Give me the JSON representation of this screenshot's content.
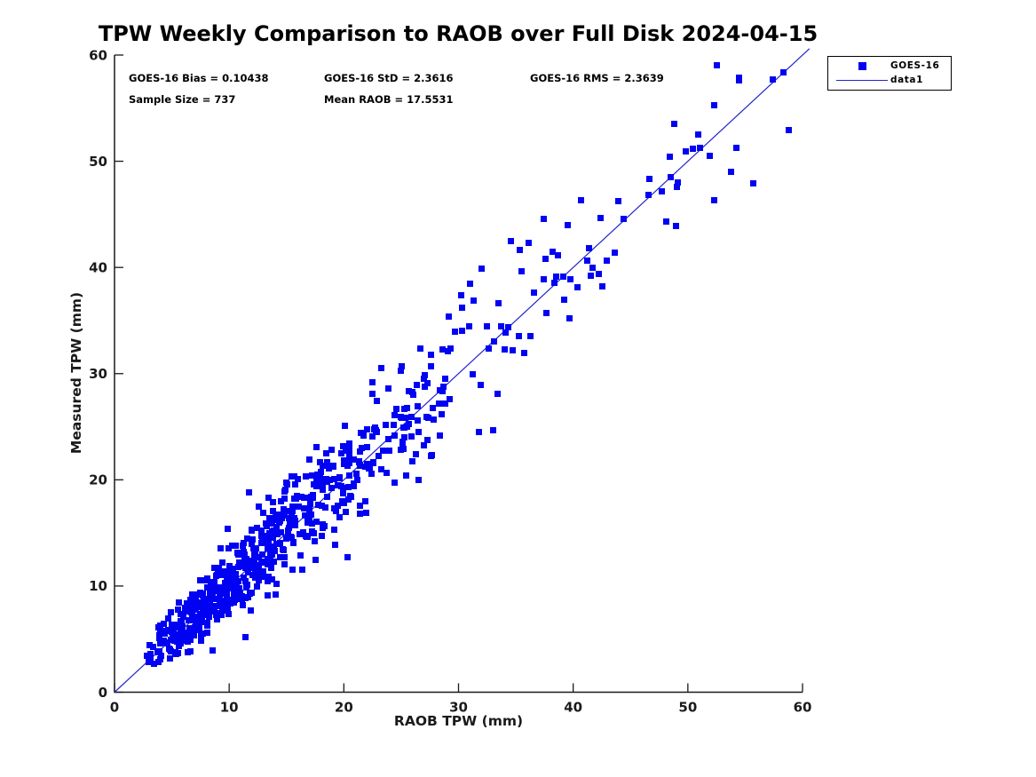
{
  "page": {
    "background": "#ffffff"
  },
  "chart_data": {
    "type": "scatter",
    "title": "TPW Weekly Comparison to RAOB over Full Disk 2024-04-15",
    "xlabel": "RAOB TPW (mm)",
    "ylabel": "Measured TPW (mm)",
    "xlim": [
      0,
      60
    ],
    "ylim": [
      0,
      60
    ],
    "x_ticks": [
      0,
      10,
      20,
      30,
      40,
      50,
      60
    ],
    "y_ticks": [
      0,
      10,
      20,
      30,
      40,
      50,
      60
    ],
    "grid": false,
    "colors": {
      "marker": "#0202f2",
      "line": "#2222cc",
      "axis": "#1a1a1a",
      "text": "#000000"
    },
    "annotations": [
      {
        "id": "bias",
        "text": "GOES-16 Bias = 0.10438"
      },
      {
        "id": "std",
        "text": "GOES-16 StD = 2.3616"
      },
      {
        "id": "rms",
        "text": "GOES-16 RMS = 2.3639"
      },
      {
        "id": "sample",
        "text": "Sample Size = 737"
      },
      {
        "id": "mean_raob",
        "text": "Mean RAOB = 17.5531"
      }
    ],
    "stats": {
      "bias": 0.10438,
      "std": 2.3616,
      "rms": 2.3639,
      "sample_size": 737,
      "mean_raob": 17.5531
    },
    "legend": {
      "position": "top-right-outside",
      "entries": [
        {
          "label": "GOES-16",
          "glyph": "square",
          "color": "#0202f2"
        },
        {
          "label": "data1",
          "glyph": "line",
          "color": "#2222cc"
        }
      ]
    },
    "series": [
      {
        "name": "GOES-16",
        "kind": "scatter",
        "marker": "square",
        "marker_size_px": 7,
        "color": "#0202f2",
        "n_points": 737,
        "notable_points": [
          [
            32.0,
            39.9
          ],
          [
            40.7,
            46.3
          ],
          [
            39.5,
            44.0
          ],
          [
            31.8,
            24.5
          ],
          [
            33.0,
            24.7
          ],
          [
            26.5,
            20.0
          ],
          [
            20.3,
            12.7
          ],
          [
            11.4,
            5.2
          ],
          [
            58.8,
            52.9
          ],
          [
            57.4,
            57.7
          ],
          [
            58.3,
            58.4
          ],
          [
            52.3,
            55.3
          ],
          [
            54.2,
            51.3
          ],
          [
            53.8,
            49.0
          ],
          [
            55.7,
            47.9
          ],
          [
            48.8,
            53.5
          ],
          [
            49.8,
            50.9
          ],
          [
            11.7,
            18.8
          ],
          [
            12.6,
            17.5
          ],
          [
            9.9,
            15.4
          ],
          [
            22.5,
            29.2
          ],
          [
            23.3,
            30.5
          ]
        ],
        "synthesis": {
          "seed": 42,
          "x_lognormal_mu": 2.6,
          "x_lognormal_sigma": 0.68,
          "x_min": 2.6,
          "x_max": 59.0,
          "bias": 0.10438,
          "resid_sigma_base": 0.6,
          "resid_sigma_slope": 0.1,
          "resid_sigma_cap": 3.5,
          "y_min": 2.6,
          "y_max": 59.2
        }
      },
      {
        "name": "data1",
        "kind": "line",
        "color": "#2222cc",
        "x": [
          0,
          60.6
        ],
        "y": [
          0,
          60.6
        ]
      }
    ]
  }
}
